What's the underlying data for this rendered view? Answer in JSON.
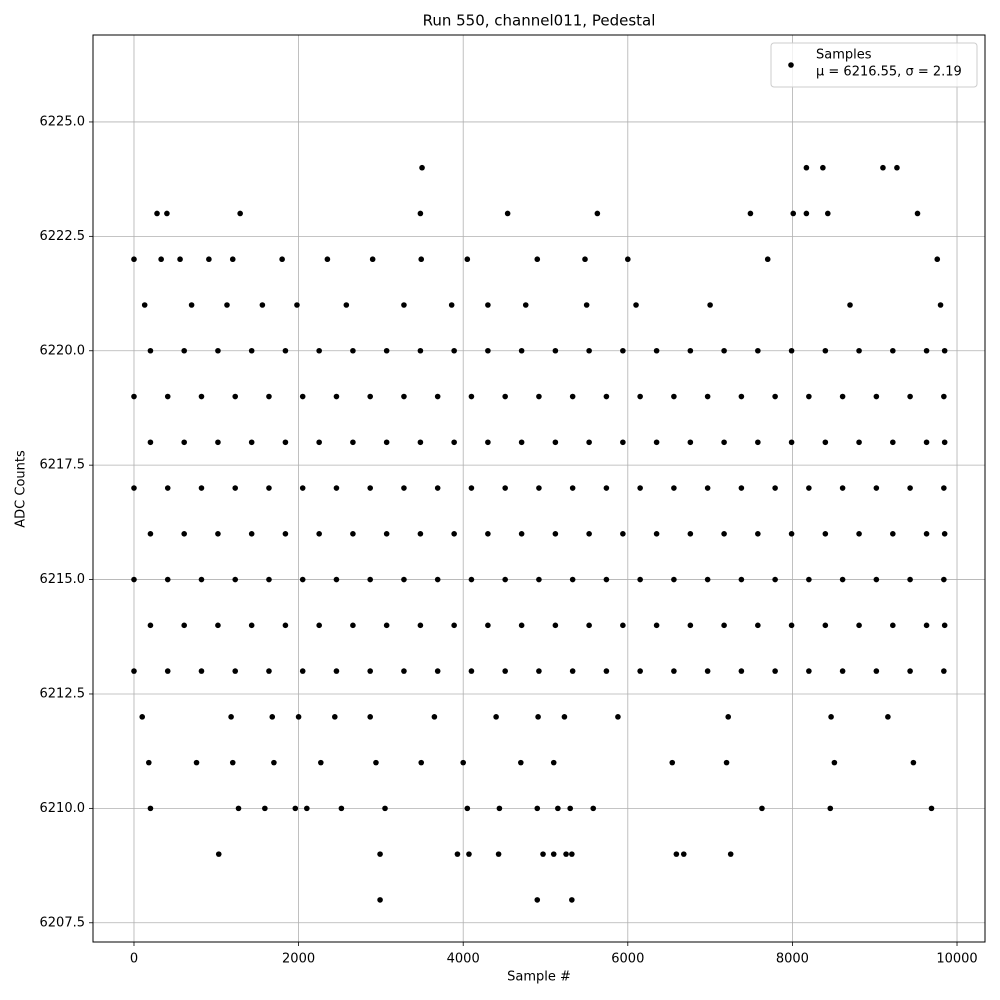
{
  "chart_data": {
    "type": "scatter",
    "title": "Run 550, channel011, Pedestal",
    "x_label": "Sample #",
    "y_label": "ADC Counts",
    "legend_position": "upper right",
    "legend_stats": "μ = 6216.55, σ = 2.19",
    "grid": true,
    "xlim": [
      -498,
      10340
    ],
    "ylim": [
      6207.08,
      6226.9
    ],
    "xticks": [
      0,
      2000,
      4000,
      6000,
      8000,
      10000
    ],
    "yticks": [
      {
        "value": 6207.5,
        "label": "6207.5"
      },
      {
        "value": 6210,
        "label": "6210.0"
      },
      {
        "value": 6212.5,
        "label": "6212.5"
      },
      {
        "value": 6215,
        "label": "6215.0"
      },
      {
        "value": 6217.5,
        "label": "6217.5"
      },
      {
        "value": 6220,
        "label": "6220.0"
      },
      {
        "value": 6222.5,
        "label": "6222.5"
      },
      {
        "value": 6225,
        "label": "6225.0"
      }
    ],
    "series": [
      {
        "name": "Samples",
        "color": "#000000",
        "x": [
          0,
          410,
          820,
          1230,
          1640,
          2050,
          2460,
          2870,
          3280,
          3690,
          4100,
          4510,
          4920,
          5330,
          5740,
          6150,
          6560,
          6970,
          7380,
          7790,
          8200,
          8610,
          9020,
          9430,
          9840,
          200,
          610,
          1020,
          1430,
          1840,
          2250,
          2660,
          3070,
          3480,
          3890,
          4300,
          4710,
          5120,
          5530,
          5940,
          6350,
          6760,
          7170,
          7580,
          7990,
          8400,
          8810,
          9220,
          9630,
          9850,
          0,
          410,
          820,
          1230,
          1640,
          2050,
          2460,
          2870,
          3280,
          3690,
          4100,
          4510,
          4920,
          5330,
          5740,
          6150,
          6560,
          6970,
          7380,
          7790,
          8200,
          8610,
          9020,
          9430,
          9840,
          200,
          610,
          1020,
          1430,
          1840,
          2250,
          2660,
          3070,
          3480,
          3890,
          4300,
          4710,
          5120,
          5530,
          5940,
          6350,
          6760,
          7170,
          7580,
          7990,
          8400,
          8810,
          9220,
          9630,
          9850,
          0,
          410,
          820,
          1230,
          1640,
          2050,
          2460,
          2870,
          3280,
          3690,
          4100,
          4510,
          4920,
          5330,
          5740,
          6150,
          6560,
          6970,
          7380,
          7790,
          8200,
          8610,
          9020,
          9430,
          9840,
          200,
          610,
          1020,
          1430,
          1840,
          2250,
          2660,
          3070,
          3480,
          3890,
          4300,
          4710,
          5120,
          5530,
          5940,
          6350,
          6760,
          7170,
          7580,
          7990,
          8400,
          8810,
          9220,
          9630,
          9850,
          0,
          410,
          820,
          1230,
          1640,
          2050,
          2460,
          2870,
          3280,
          3690,
          4100,
          4510,
          4920,
          5330,
          5740,
          6150,
          6560,
          6970,
          7380,
          7790,
          8200,
          8610,
          9020,
          9430,
          9840,
          200,
          610,
          1020,
          1430,
          1840,
          2250,
          2660,
          3070,
          3480,
          3890,
          4300,
          4710,
          5120,
          5530,
          5940,
          6350,
          6760,
          7170,
          7580,
          7990,
          8400,
          8810,
          9220,
          9630,
          9850,
          130,
          700,
          1130,
          1560,
          1980,
          2580,
          3280,
          3860,
          4300,
          4760,
          5500,
          6100,
          7000,
          8700,
          9800,
          0,
          330,
          560,
          910,
          1200,
          1800,
          2350,
          2900,
          3490,
          4050,
          4900,
          5480,
          6000,
          7700,
          9760,
          100,
          1180,
          1680,
          2000,
          2440,
          2870,
          3650,
          4400,
          4910,
          5230,
          5880,
          7220,
          8470,
          9160,
          180,
          760,
          1200,
          1700,
          2270,
          2940,
          3490,
          4000,
          4700,
          5100,
          6540,
          7200,
          8510,
          9470,
          3500,
          8170,
          8370,
          9100,
          9270,
          280,
          400,
          1290,
          3480,
          4540,
          5630,
          7490,
          8010,
          8170,
          8430,
          9520,
          200,
          1270,
          1590,
          1960,
          2100,
          2520,
          3050,
          4050,
          4440,
          4900,
          5150,
          5300,
          5580,
          7630,
          8460,
          9690,
          1030,
          2990,
          3930,
          4070,
          4430,
          4970,
          5100,
          5250,
          5320,
          6590,
          6680,
          7250,
          2990,
          4900,
          5320
        ],
        "values": [
          6213,
          6213,
          6213,
          6213,
          6213,
          6213,
          6213,
          6213,
          6213,
          6213,
          6213,
          6213,
          6213,
          6213,
          6213,
          6213,
          6213,
          6213,
          6213,
          6213,
          6213,
          6213,
          6213,
          6213,
          6213,
          6214,
          6214,
          6214,
          6214,
          6214,
          6214,
          6214,
          6214,
          6214,
          6214,
          6214,
          6214,
          6214,
          6214,
          6214,
          6214,
          6214,
          6214,
          6214,
          6214,
          6214,
          6214,
          6214,
          6214,
          6214,
          6215,
          6215,
          6215,
          6215,
          6215,
          6215,
          6215,
          6215,
          6215,
          6215,
          6215,
          6215,
          6215,
          6215,
          6215,
          6215,
          6215,
          6215,
          6215,
          6215,
          6215,
          6215,
          6215,
          6215,
          6215,
          6216,
          6216,
          6216,
          6216,
          6216,
          6216,
          6216,
          6216,
          6216,
          6216,
          6216,
          6216,
          6216,
          6216,
          6216,
          6216,
          6216,
          6216,
          6216,
          6216,
          6216,
          6216,
          6216,
          6216,
          6216,
          6217,
          6217,
          6217,
          6217,
          6217,
          6217,
          6217,
          6217,
          6217,
          6217,
          6217,
          6217,
          6217,
          6217,
          6217,
          6217,
          6217,
          6217,
          6217,
          6217,
          6217,
          6217,
          6217,
          6217,
          6217,
          6218,
          6218,
          6218,
          6218,
          6218,
          6218,
          6218,
          6218,
          6218,
          6218,
          6218,
          6218,
          6218,
          6218,
          6218,
          6218,
          6218,
          6218,
          6218,
          6218,
          6218,
          6218,
          6218,
          6218,
          6218,
          6219,
          6219,
          6219,
          6219,
          6219,
          6219,
          6219,
          6219,
          6219,
          6219,
          6219,
          6219,
          6219,
          6219,
          6219,
          6219,
          6219,
          6219,
          6219,
          6219,
          6219,
          6219,
          6219,
          6219,
          6219,
          6220,
          6220,
          6220,
          6220,
          6220,
          6220,
          6220,
          6220,
          6220,
          6220,
          6220,
          6220,
          6220,
          6220,
          6220,
          6220,
          6220,
          6220,
          6220,
          6220,
          6220,
          6220,
          6220,
          6220,
          6220,
          6221,
          6221,
          6221,
          6221,
          6221,
          6221,
          6221,
          6221,
          6221,
          6221,
          6221,
          6221,
          6221,
          6221,
          6221,
          6222,
          6222,
          6222,
          6222,
          6222,
          6222,
          6222,
          6222,
          6222,
          6222,
          6222,
          6222,
          6222,
          6222,
          6222,
          6212,
          6212,
          6212,
          6212,
          6212,
          6212,
          6212,
          6212,
          6212,
          6212,
          6212,
          6212,
          6212,
          6212,
          6211,
          6211,
          6211,
          6211,
          6211,
          6211,
          6211,
          6211,
          6211,
          6211,
          6211,
          6211,
          6211,
          6211,
          6224,
          6224,
          6224,
          6224,
          6224,
          6223,
          6223,
          6223,
          6223,
          6223,
          6223,
          6223,
          6223,
          6223,
          6223,
          6223,
          6210,
          6210,
          6210,
          6210,
          6210,
          6210,
          6210,
          6210,
          6210,
          6210,
          6210,
          6210,
          6210,
          6210,
          6210,
          6210,
          6209,
          6209,
          6209,
          6209,
          6209,
          6209,
          6209,
          6209,
          6209,
          6209,
          6209,
          6209,
          6208,
          6208,
          6208
        ]
      }
    ]
  }
}
